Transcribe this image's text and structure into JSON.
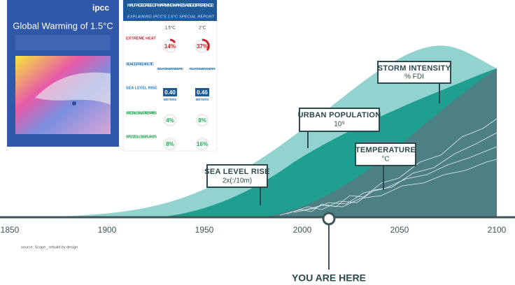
{
  "report_cover": {
    "logo": "ipcc",
    "title": "Global Warming of 1.5°C"
  },
  "infographic": {
    "title": "HALF A DEGREE OF WARMING MAKES A BIG DIFFERENCE:",
    "subtitle": "EXPLAINING IPCC'S 1.5°C SPECIAL REPORT",
    "columns": [
      "1.5°C",
      "2°C"
    ],
    "rows": [
      {
        "label": "EXTREME HEAT",
        "a": "14%",
        "b": "37%"
      },
      {
        "label": "SEA-ICE-FREE ARCTIC",
        "a": "AT LEAST 1 EVERY 100 YEARS",
        "b": "AT LEAST 1 EVERY 10 YEARS"
      },
      {
        "label": "SEA LEVEL RISE",
        "a": "0.40",
        "b": "0.46",
        "unit": "METERS"
      },
      {
        "label": "SPECIES LOSS: VERTEBRATES",
        "a": "4%",
        "b": "8%"
      },
      {
        "label": "SPECIES LOSS: PLANTS",
        "a": "8%",
        "b": "16%"
      }
    ]
  },
  "callouts": [
    {
      "title": "STORM INTENSITY",
      "unit": "% FDI"
    },
    {
      "title": "URBAN POPULATION",
      "unit": "10⁹"
    },
    {
      "title": "TEMPERATURE",
      "unit": "°C"
    },
    {
      "title": "SEA LEVEL RISE",
      "unit": "2x(:/10m)"
    }
  ],
  "timeline": {
    "years": [
      "1850",
      "1900",
      "1950",
      "2000",
      "2050",
      "2100"
    ],
    "marker": "YOU ARE HERE"
  },
  "source": "source: Scope_ rebuild by design"
}
